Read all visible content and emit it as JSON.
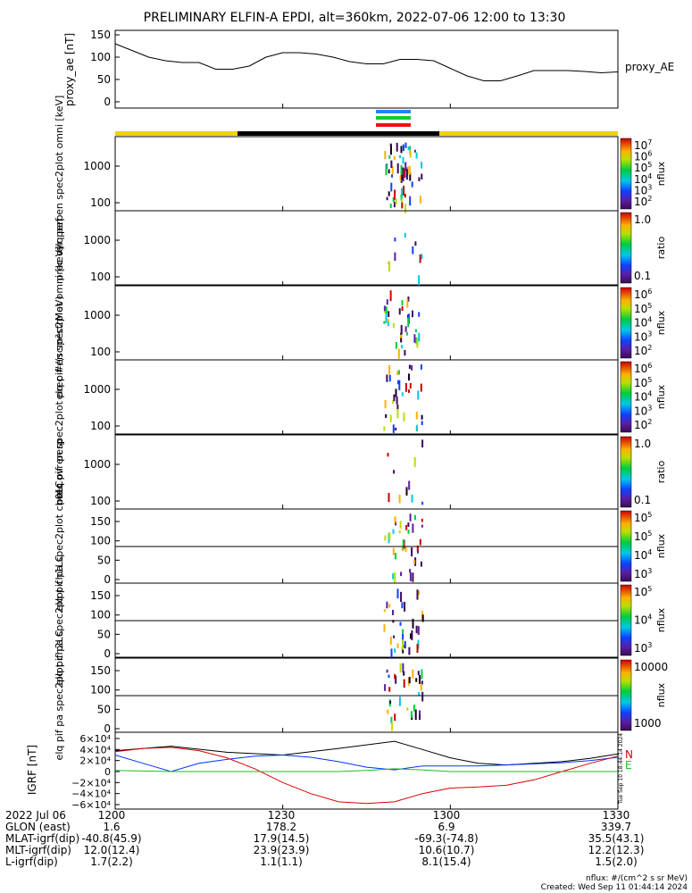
{
  "chart_data": {
    "type": "heatmap",
    "title": "PRELIMINARY ELFIN-A EPDI, alt=360km, 2022-07-06 12:00 to 13:30",
    "x_ticks": [
      "1200",
      "1230",
      "1300",
      "1330"
    ],
    "x_range_minutes": [
      0,
      90
    ],
    "panels": [
      {
        "kind": "line",
        "ylabel": "proxy_ae [nT]",
        "legend": "proxy_AE",
        "yticks": [
          "150",
          "100",
          "50",
          "0"
        ],
        "ylim": [
          0,
          150
        ],
        "series": [
          {
            "name": "proxy_AE",
            "x": [
              0,
              3,
              6,
              9,
              12,
              15,
              18,
              21,
              24,
              27,
              30,
              33,
              36,
              39,
              42,
              45,
              48,
              51,
              54,
              57,
              60,
              63,
              66,
              69,
              72,
              75,
              78,
              81,
              84,
              87,
              90
            ],
            "y": [
              130,
              115,
              100,
              92,
              88,
              88,
              73,
              73,
              80,
              100,
              110,
              110,
              107,
              100,
              90,
              85,
              85,
              95,
              95,
              92,
              75,
              58,
              47,
              47,
              58,
              70,
              70,
              70,
              68,
              65,
              67
            ]
          }
        ]
      },
      {
        "kind": "spectrogram",
        "ylabel": "elq pef en spec2plot omni [keV]",
        "yticks": [
          "1000",
          "100"
        ],
        "colorbar_label": "nflux",
        "colorbar_ticks": [
          "10^7",
          "10^6",
          "10^5",
          "10^4",
          "10^3",
          "10^2"
        ]
      },
      {
        "kind": "spectrogram",
        "ylabel": "prec ovr perp",
        "yticks": [
          "1000",
          "100"
        ],
        "colorbar_label": "ratio",
        "colorbar_ticks": [
          "1.0",
          "0.1"
        ]
      },
      {
        "kind": "spectrogram",
        "ylabel": "elq pif en spec2plot omni [keV]",
        "yticks": [
          "1000",
          "100"
        ],
        "colorbar_label": "nflux",
        "colorbar_ticks": [
          "10^6",
          "10^5",
          "10^4",
          "10^3",
          "10^2"
        ]
      },
      {
        "kind": "spectrogram",
        "ylabel": "elq pif en spec2plot prec #/(scm²strMeV)",
        "yticks": [
          "1000",
          "100"
        ],
        "colorbar_label": "nflux",
        "colorbar_ticks": [
          "10^6",
          "10^5",
          "10^4",
          "10^3",
          "10^2"
        ]
      },
      {
        "kind": "spectrogram",
        "ylabel": "prec ovr perp",
        "yticks": [
          "1000",
          "100"
        ],
        "colorbar_label": "ratio",
        "colorbar_ticks": [
          "1.0",
          "0.1"
        ]
      },
      {
        "kind": "spectrogram",
        "ylabel": "elq pif pa spec2plot ch0LC",
        "yticks": [
          "150",
          "100",
          "50",
          "0"
        ],
        "colorbar_label": "nflux",
        "colorbar_ticks": [
          "10^5",
          "10^5",
          "10^4",
          "10^3"
        ]
      },
      {
        "kind": "spectrogram",
        "ylabel": "elq pif pa spec2plot ch1LC",
        "yticks": [
          "150",
          "100",
          "50",
          "0"
        ],
        "colorbar_label": "nflux",
        "colorbar_ticks": [
          "10^5",
          "10^4",
          "10^3"
        ]
      },
      {
        "kind": "spectrogram",
        "ylabel": "elq pif pa spec2plot ch2LC",
        "yticks": [
          "150",
          "100",
          "50",
          "0"
        ],
        "colorbar_label": "nflux",
        "colorbar_ticks": [
          "10000",
          "1000"
        ]
      },
      {
        "kind": "line",
        "ylabel": "IGRF [nT]",
        "yticks": [
          "6×10⁴",
          "4×10⁴",
          "2×10⁴",
          "0",
          "−2×10⁴",
          "−4×10⁴",
          "−6×10⁴"
        ],
        "ylim": [
          -60000,
          60000
        ],
        "legend": [
          "N",
          "E"
        ],
        "side_text": "Tue Sep 10 18:44:14 2024",
        "series": [
          {
            "color": "#000000",
            "x": [
              0,
              10,
              20,
              30,
              40,
              50,
              55,
              60,
              65,
              70,
              75,
              80,
              85,
              90
            ],
            "y": [
              38000,
              46000,
              35000,
              30000,
              42000,
              55000,
              40000,
              25000,
              15000,
              12000,
              15000,
              18000,
              24000,
              32000
            ]
          },
          {
            "color": "#0033ff",
            "x": [
              0,
              5,
              10,
              15,
              20,
              25,
              30,
              35,
              40,
              45,
              50,
              55,
              60,
              65,
              70,
              75,
              80,
              85,
              90
            ],
            "y": [
              30000,
              15000,
              0,
              15000,
              22000,
              28000,
              30000,
              26000,
              18000,
              8000,
              3000,
              10000,
              10000,
              10000,
              12000,
              14000,
              16000,
              20000,
              26000
            ]
          },
          {
            "color": "#dd0000",
            "x": [
              0,
              5,
              10,
              15,
              20,
              25,
              30,
              35,
              40,
              45,
              50,
              55,
              60,
              65,
              70,
              75,
              80,
              85,
              90
            ],
            "y": [
              36000,
              42000,
              44000,
              38000,
              25000,
              5000,
              -20000,
              -40000,
              -55000,
              -58000,
              -55000,
              -40000,
              -30000,
              -28000,
              -25000,
              -15000,
              0,
              15000,
              28000
            ]
          },
          {
            "color": "#22bb22",
            "x": [
              0,
              10,
              20,
              30,
              40,
              45,
              50,
              55,
              60,
              90
            ],
            "y": [
              2000,
              0,
              0,
              0,
              0,
              2000,
              5000,
              3000,
              0,
              0
            ]
          }
        ]
      }
    ],
    "annotations": {
      "proxy_legend": "proxy_AE",
      "igrf_side": "Tue Sep 10 18:44:14 2024",
      "igrf_N": "N",
      "igrf_E": "E"
    }
  },
  "bottom_table": {
    "rows": [
      {
        "label": "2022 Jul 06",
        "values": [
          "1200",
          "1230",
          "1300",
          "1330"
        ]
      },
      {
        "label": "GLON (east)",
        "values": [
          "1.6",
          "178.2",
          "6.9",
          "339.7"
        ]
      },
      {
        "label": "MLAT-igrf(dip)",
        "values": [
          "-40.8(45.9)",
          "17.9(14.5)",
          "-69.3(-74.8)",
          "35.5(43.1)"
        ]
      },
      {
        "label": "MLT-igrf(dip)",
        "values": [
          "12.0(12.4)",
          "23.9(23.9)",
          "10.6(10.7)",
          "12.2(12.3)"
        ]
      },
      {
        "label": "L-igrf(dip)",
        "values": [
          "1.7(2.2)",
          "1.1(1.1)",
          "8.1(15.4)",
          "1.5(2.0)"
        ]
      }
    ]
  },
  "footer": {
    "line1": "nflux: #/(cm^2 s sr MeV)",
    "line2": "Created: Wed Sep 11 01:44:14 2024"
  },
  "colors": {
    "sunlit_bar": "#f0d010",
    "eclipse_bar": "#000000",
    "stripe_blue": "#2a7fff",
    "stripe_green": "#11cc33",
    "stripe_red": "#ee1111"
  }
}
